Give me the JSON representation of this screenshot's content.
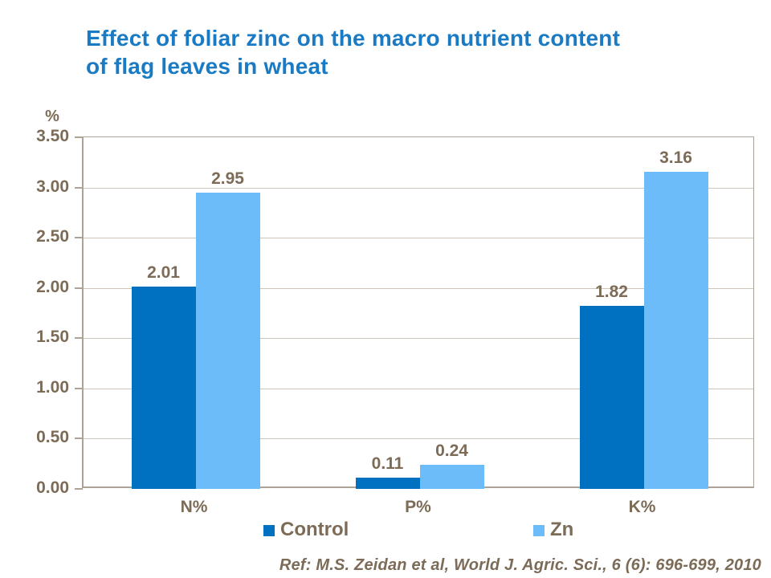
{
  "title": {
    "line1": "Effect of foliar zinc on the macro nutrient content",
    "line2": "of flag leaves in wheat"
  },
  "chart_data": {
    "type": "bar",
    "title": "Effect of foliar zinc on the macro nutrient content of flag leaves in wheat",
    "unit_label": "%",
    "categories": [
      "N%",
      "P%",
      "K%"
    ],
    "series": [
      {
        "name": "Control",
        "color": "#0070C0",
        "values": [
          2.01,
          0.11,
          1.82
        ]
      },
      {
        "name": "Zn",
        "color": "#6CBCFA",
        "values": [
          2.95,
          0.24,
          3.16
        ]
      }
    ],
    "data_labels": [
      [
        "2.01",
        "0.11",
        "1.82"
      ],
      [
        "2.95",
        "0.24",
        "3.16"
      ]
    ],
    "ylim": [
      0,
      3.5
    ],
    "ytick_step": 0.5,
    "ytick_labels": [
      "0.00",
      "0.50",
      "1.00",
      "1.50",
      "2.00",
      "2.50",
      "3.00",
      "3.50"
    ],
    "grid": true,
    "legend_position": "bottom"
  },
  "reference": "Ref: M.S. Zeidan et al, World J. Agric. Sci., 6 (6): 696-699, 2010",
  "colors": {
    "title_blue": "#1A7BC4",
    "label_taupe": "#7C6B57",
    "gridline": "#CDC5B9",
    "axis_line": "#ACA295",
    "control_bar": "#0070C0",
    "zn_bar": "#6CBCFA"
  }
}
